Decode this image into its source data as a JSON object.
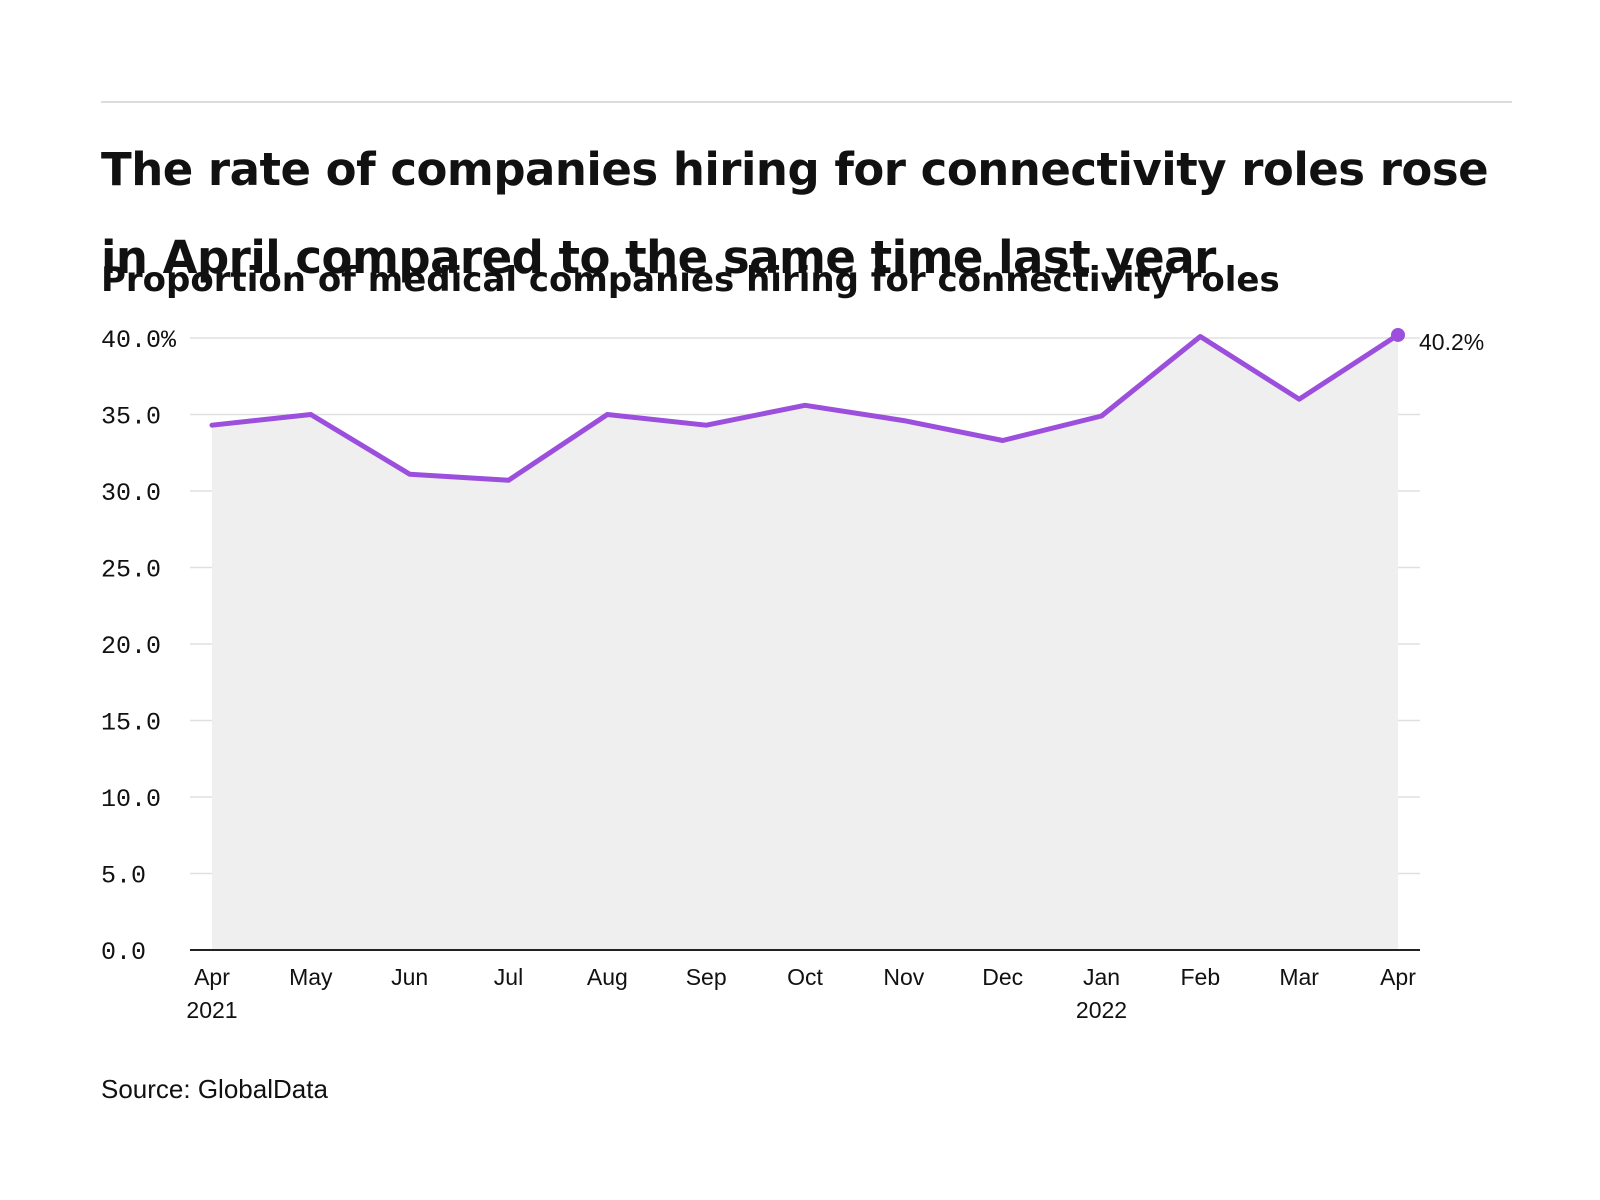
{
  "title": "The rate of companies hiring for connectivity roles rose in April compared to the same time last year",
  "subtitle": "Proportion of medical companies hiring for connectivity roles",
  "source": "Source: GlobalData",
  "chart_data": {
    "type": "area",
    "title": "The rate of companies hiring for connectivity roles rose in April compared to the same time last year",
    "subtitle": "Proportion of medical companies hiring for connectivity roles",
    "xlabel": "",
    "ylabel": "",
    "categories": [
      "Apr 2021",
      "May 2021",
      "Jun 2021",
      "Jul 2021",
      "Aug 2021",
      "Sep 2021",
      "Oct 2021",
      "Nov 2021",
      "Dec 2021",
      "Jan 2022",
      "Feb 2022",
      "Mar 2022",
      "Apr 2022"
    ],
    "x_tick_labels": [
      {
        "month": "Apr",
        "year": "2021"
      },
      {
        "month": "May",
        "year": ""
      },
      {
        "month": "Jun",
        "year": ""
      },
      {
        "month": "Jul",
        "year": ""
      },
      {
        "month": "Aug",
        "year": ""
      },
      {
        "month": "Sep",
        "year": ""
      },
      {
        "month": "Oct",
        "year": ""
      },
      {
        "month": "Nov",
        "year": ""
      },
      {
        "month": "Dec",
        "year": ""
      },
      {
        "month": "Jan",
        "year": "2022"
      },
      {
        "month": "Feb",
        "year": ""
      },
      {
        "month": "Mar",
        "year": ""
      },
      {
        "month": "Apr",
        "year": ""
      }
    ],
    "values": [
      34.3,
      35.0,
      31.1,
      30.7,
      35.0,
      34.3,
      35.6,
      34.6,
      33.3,
      34.9,
      40.1,
      36.0,
      40.2
    ],
    "ylim": [
      0,
      40
    ],
    "y_ticks": [
      0,
      5,
      10,
      15,
      20,
      25,
      30,
      35,
      40
    ],
    "y_tick_labels": [
      "0.0",
      "5.0",
      "10.0",
      "15.0",
      "20.0",
      "25.0",
      "30.0",
      "35.0",
      "40.0%"
    ],
    "end_label": "40.2%",
    "grid": true,
    "legend": "none",
    "line_color": "#9b4fdc",
    "area_color": "#efefef",
    "grid_color": "#e0e0e0"
  }
}
